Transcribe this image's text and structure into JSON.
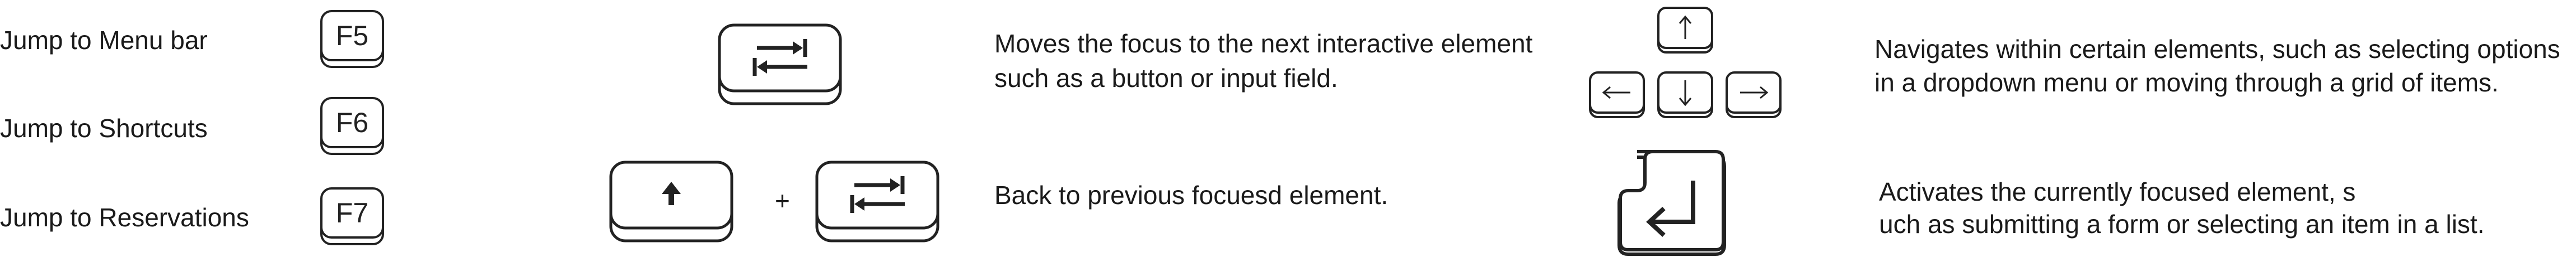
{
  "jumps": [
    {
      "label": "Jump to Menu bar",
      "key": "F5"
    },
    {
      "label": "Jump to Shortcuts",
      "key": "F6"
    },
    {
      "label": "Jump to Reservations",
      "key": "F7"
    }
  ],
  "tab_section": {
    "tab_line1": "Moves the focus to the next interactive element",
    "tab_line2": "such as a button or input field.",
    "plus": "+",
    "shift_tab_desc": "Back to previous focuesd element."
  },
  "arrow_section": {
    "line1": "Navigates within certain elements, such as selecting options",
    "line2": "in a dropdown menu or moving through a grid of items."
  },
  "enter_section": {
    "line1": "Activates the currently focused element, s",
    "line2": "uch as submitting a form or selecting an item in a list."
  },
  "icons": [
    "tab-key-icon",
    "shift-key-icon",
    "arrow-keys-icon",
    "enter-key-icon"
  ]
}
